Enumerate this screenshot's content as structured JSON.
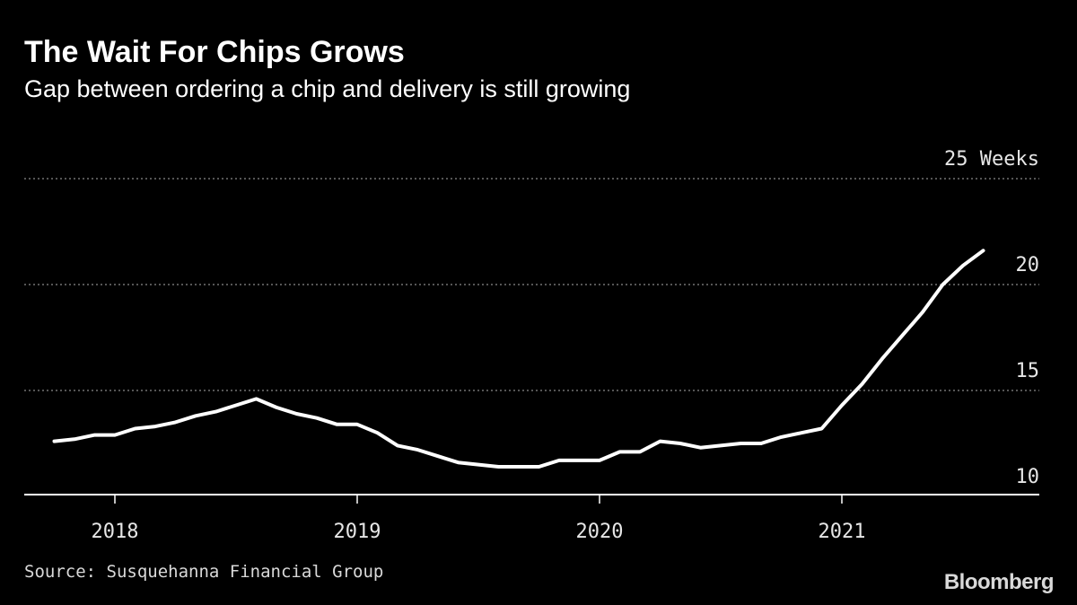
{
  "chart_data": {
    "type": "line",
    "title": "The Wait For Chips Grows",
    "subtitle": "Gap between ordering a chip and delivery is still growing",
    "unit_label": "25 Weeks",
    "y_ticks": [
      10,
      15,
      20,
      25
    ],
    "y_tick_labels": [
      "10",
      "15",
      "20",
      "25 Weeks"
    ],
    "x_ticks": [
      "2018",
      "2019",
      "2020",
      "2021"
    ],
    "ylim": [
      10,
      25
    ],
    "grid": "horizontal dotted",
    "line_color": "#ffffff",
    "series": [
      {
        "x": [
          "2017-10",
          "2017-11",
          "2017-12",
          "2018-01",
          "2018-02",
          "2018-03",
          "2018-04",
          "2018-05",
          "2018-06",
          "2018-07",
          "2018-08",
          "2018-09",
          "2018-10",
          "2018-11",
          "2018-12",
          "2019-01",
          "2019-02",
          "2019-03",
          "2019-04",
          "2019-05",
          "2019-06",
          "2019-07",
          "2019-08",
          "2019-09",
          "2019-10",
          "2019-11",
          "2019-12",
          "2020-01",
          "2020-02",
          "2020-03",
          "2020-04",
          "2020-05",
          "2020-06",
          "2020-07",
          "2020-08",
          "2020-09",
          "2020-10",
          "2020-11",
          "2020-12",
          "2021-01",
          "2021-02",
          "2021-03",
          "2021-04",
          "2021-05",
          "2021-06",
          "2021-07",
          "2021-08"
        ],
        "values": [
          12.6,
          12.7,
          12.9,
          12.9,
          13.2,
          13.3,
          13.5,
          13.8,
          14.0,
          14.3,
          14.6,
          14.2,
          13.9,
          13.7,
          13.4,
          13.4,
          13.0,
          12.4,
          12.2,
          11.9,
          11.6,
          11.5,
          11.4,
          11.4,
          11.4,
          11.7,
          11.7,
          11.7,
          12.1,
          12.1,
          12.6,
          12.5,
          12.3,
          12.4,
          12.5,
          12.5,
          12.8,
          13.0,
          13.2,
          14.3,
          15.3,
          16.5,
          17.6,
          18.7,
          20.0,
          20.9,
          21.6
        ]
      }
    ]
  },
  "footer": {
    "source": "Source: Susquehanna Financial Group",
    "logo": "Bloomberg"
  }
}
